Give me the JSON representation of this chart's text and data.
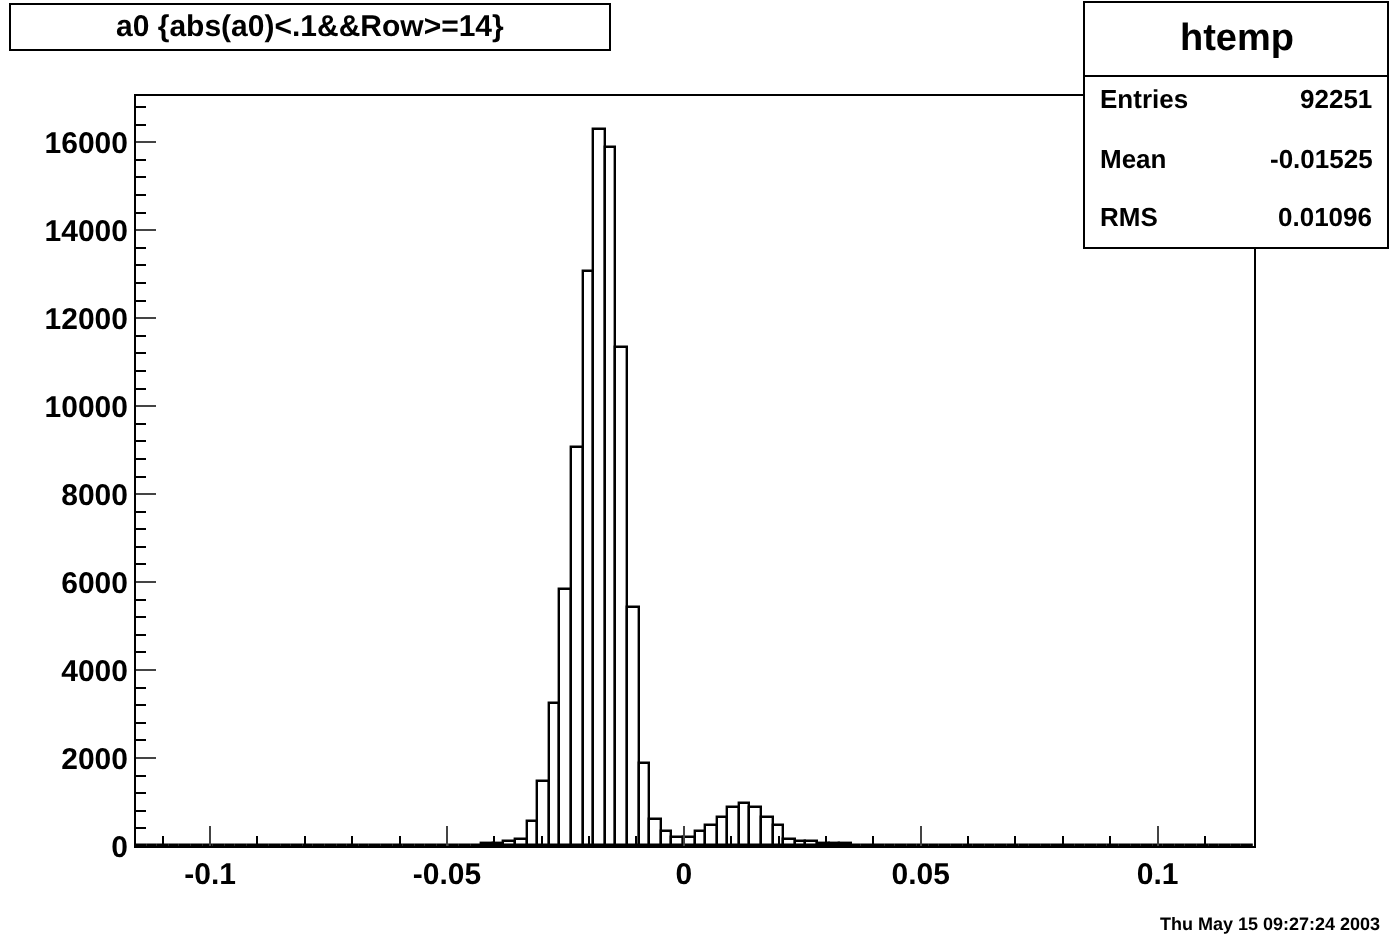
{
  "chart_data": {
    "type": "histogram",
    "title": "a0 {abs(a0)<.1&&Row>=14}",
    "bins": [
      -0.11564,
      -0.11328,
      -0.11092,
      -0.10856,
      -0.1062,
      -0.10384,
      -0.10148,
      -0.09912,
      -0.09676,
      -0.0944,
      -0.09204,
      -0.08968,
      -0.08732,
      -0.08496,
      -0.0826,
      -0.08024,
      -0.07788,
      -0.07552,
      -0.07316,
      -0.0708,
      -0.06844,
      -0.06608,
      -0.06372,
      -0.06136,
      -0.059,
      -0.05664,
      -0.05428,
      -0.05192,
      -0.04956,
      -0.0472,
      -0.04484,
      -0.04248,
      -0.04012,
      -0.03776,
      -0.0354,
      -0.03304,
      -0.03068,
      -0.02832,
      -0.02596,
      -0.0236,
      -0.02124,
      -0.01888,
      -0.01652,
      -0.01416,
      -0.0118,
      -0.00944,
      -0.00708,
      -0.00472,
      -0.00236,
      0,
      0.00236,
      0.00472,
      0.00708,
      0.00944,
      0.0118,
      0.01416,
      0.01652,
      0.01888,
      0.02124,
      0.0236,
      0.02596,
      0.02832,
      0.03068,
      0.03304,
      0.0354,
      0.03776,
      0.04012,
      0.04248,
      0.04484,
      0.0472,
      0.04956,
      0.05192,
      0.05428,
      0.05664,
      0.059,
      0.06136,
      0.06372,
      0.06608,
      0.06844,
      0.0708,
      0.07316,
      0.07552,
      0.07788,
      0.08024,
      0.0826,
      0.08496,
      0.08732,
      0.08968,
      0.09204,
      0.0944,
      0.09676,
      0.09912,
      0.10148,
      0.10384,
      0.1062,
      0.10856,
      0.11092,
      0.11328,
      0.11564,
      0.118,
      0.12036
    ],
    "values": [
      0,
      0,
      0,
      0,
      0,
      0,
      0,
      10,
      10,
      10,
      10,
      10,
      10,
      0,
      10,
      10,
      10,
      10,
      0,
      0,
      10,
      10,
      10,
      10,
      10,
      10,
      0,
      10,
      10,
      10,
      10,
      30,
      50,
      80,
      150,
      550,
      1450,
      3250,
      5800,
      9050,
      13050,
      16300,
      15850,
      11300,
      5400,
      1850,
      600,
      300,
      200,
      200,
      300,
      450,
      650,
      850,
      950,
      850,
      650,
      450,
      150,
      100,
      100,
      50,
      50,
      50,
      20,
      20,
      20,
      20,
      20,
      20,
      20,
      20,
      20,
      20,
      20,
      20,
      20,
      20,
      20,
      20,
      20,
      20,
      20,
      20,
      20,
      20,
      20,
      20,
      20,
      20,
      20,
      20,
      0,
      0,
      0,
      0,
      0,
      0,
      0,
      0
    ],
    "color": "#000000",
    "xlim": [
      -0.11564,
      0.12036
    ],
    "xticks": [
      -0.1,
      -0.05,
      0,
      0.05,
      0.1
    ],
    "ylim": [
      0,
      17050
    ],
    "yticks": [
      0,
      2000,
      4000,
      6000,
      8000,
      10000,
      12000,
      14000,
      16000
    ],
    "annotations": [
      "htemp",
      "Entries",
      "92251",
      "Mean",
      "-0.01525",
      "RMS",
      "0.01096",
      "Thu May 15 09:27:24 2003"
    ]
  }
}
